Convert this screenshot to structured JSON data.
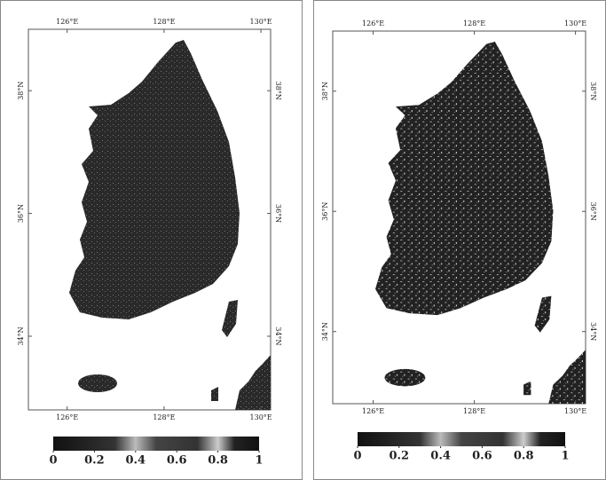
{
  "panels": [
    {
      "xlim": [
        125.2,
        130.2
      ],
      "ylim": [
        32.8,
        39.0
      ],
      "xticks": [
        {
          "value": 126,
          "label": "126°E"
        },
        {
          "value": 128,
          "label": "128°E"
        },
        {
          "value": 130,
          "label": "130°E"
        }
      ],
      "yticks": [
        {
          "value": 38,
          "label": "38°N"
        },
        {
          "value": 36,
          "label": "36°N"
        },
        {
          "value": 34,
          "label": "34°N"
        }
      ],
      "colorbar": {
        "ticks": [
          0,
          0.2,
          0.4,
          0.6,
          0.8,
          1
        ]
      }
    },
    {
      "xlim": [
        125.2,
        130.2
      ],
      "ylim": [
        32.8,
        39.0
      ],
      "xticks": [
        {
          "value": 126,
          "label": "126°E"
        },
        {
          "value": 128,
          "label": "128°E"
        },
        {
          "value": 130,
          "label": "130°E"
        }
      ],
      "yticks": [
        {
          "value": 38,
          "label": "38°N"
        },
        {
          "value": 36,
          "label": "36°N"
        },
        {
          "value": 34,
          "label": "34°N"
        }
      ],
      "colorbar": {
        "ticks": [
          0,
          0.2,
          0.4,
          0.6,
          0.8,
          1
        ]
      }
    }
  ]
}
